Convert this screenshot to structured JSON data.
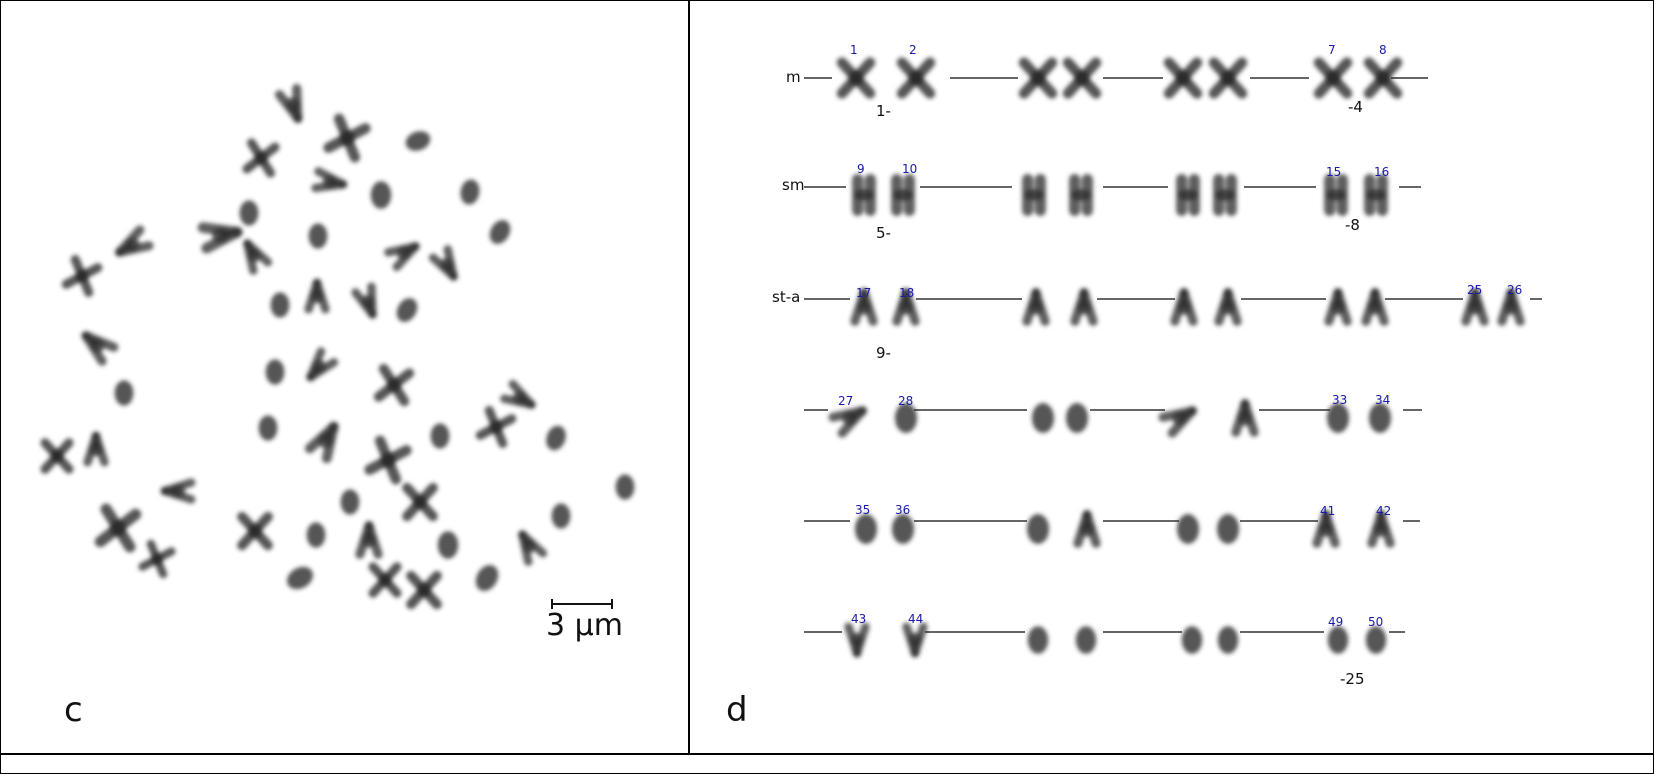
{
  "panel_c": {
    "label": "c",
    "scale_text": "3 µm"
  },
  "panel_d": {
    "label": "d",
    "rows": [
      {
        "class_label": "m",
        "pair_numbers": [
          "1",
          "2",
          "7",
          "8"
        ],
        "index_labels": [
          "1-",
          "-4"
        ]
      },
      {
        "class_label": "sm",
        "pair_numbers": [
          "9",
          "10",
          "15",
          "16"
        ],
        "index_labels": [
          "5-",
          "-8"
        ]
      },
      {
        "class_label": "st-a",
        "pair_numbers": [
          "17",
          "18",
          "25",
          "26"
        ],
        "index_labels": [
          "9-"
        ]
      },
      {
        "class_label": "",
        "pair_numbers": [
          "27",
          "28",
          "33",
          "34"
        ],
        "index_labels": []
      },
      {
        "class_label": "",
        "pair_numbers": [
          "35",
          "36",
          "41",
          "42"
        ],
        "index_labels": []
      },
      {
        "class_label": "",
        "pair_numbers": [
          "43",
          "44",
          "49",
          "50"
        ],
        "index_labels": [
          "-25"
        ]
      }
    ]
  },
  "colors": {
    "border": "#000000",
    "chromosome": "#2a2a2a",
    "number_label": "#1a1aa8",
    "background": "#ffffff"
  }
}
